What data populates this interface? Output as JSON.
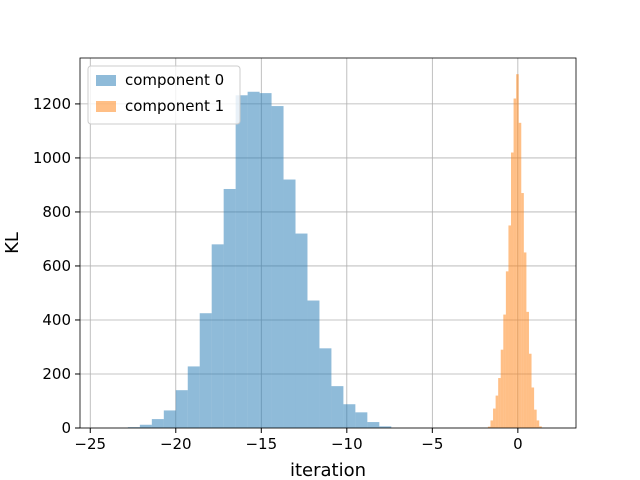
{
  "chart_data": {
    "type": "histogram",
    "xlabel": "iteration",
    "ylabel": "KL",
    "xlim": [
      -25.6,
      3.4
    ],
    "ylim": [
      0,
      1370
    ],
    "xticks": [
      -25,
      -20,
      -15,
      -10,
      -5,
      0
    ],
    "yticks": [
      0,
      200,
      400,
      600,
      800,
      1000,
      1200
    ],
    "grid": true,
    "legend_position": "top-left",
    "series": [
      {
        "name": "component 0",
        "color": "#1f77b4",
        "opacity": 0.5,
        "bin_edges": [
          -22.8,
          -22.1,
          -21.4,
          -20.7,
          -20.0,
          -19.3,
          -18.6,
          -17.9,
          -17.2,
          -16.5,
          -15.8,
          -15.1,
          -14.4,
          -13.7,
          -13.0,
          -12.3,
          -11.6,
          -10.9,
          -10.2,
          -9.5,
          -8.8,
          -8.1,
          -7.4
        ],
        "counts": [
          3,
          12,
          33,
          65,
          140,
          228,
          425,
          680,
          885,
          1232,
          1245,
          1240,
          1192,
          920,
          720,
          472,
          295,
          155,
          88,
          58,
          22,
          6
        ]
      },
      {
        "name": "component 1",
        "color": "#ff7f0e",
        "opacity": 0.5,
        "bin_edges": [
          -1.75,
          -1.6,
          -1.45,
          -1.3,
          -1.15,
          -1.0,
          -0.85,
          -0.7,
          -0.55,
          -0.4,
          -0.25,
          -0.1,
          0.05,
          0.2,
          0.35,
          0.5,
          0.65,
          0.8,
          0.95,
          1.1,
          1.25,
          1.4
        ],
        "counts": [
          5,
          28,
          72,
          120,
          185,
          290,
          420,
          580,
          750,
          1020,
          1220,
          1310,
          1130,
          870,
          650,
          430,
          275,
          150,
          68,
          28,
          6
        ]
      }
    ]
  }
}
